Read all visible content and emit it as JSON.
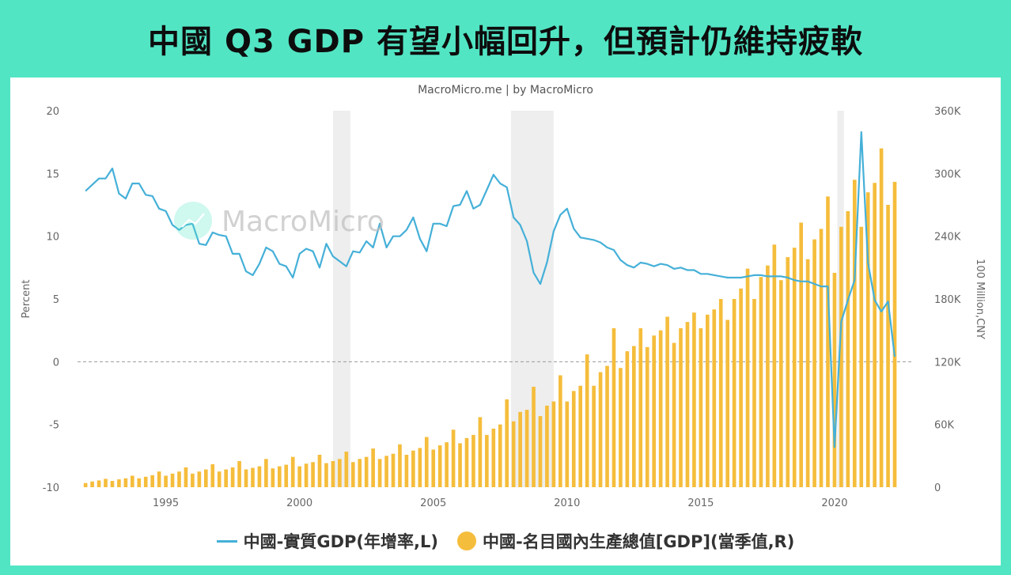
{
  "headline": "中國 Q3 GDP 有望小幅回升，但預計仍維持疲軟",
  "source": "MacroMicro.me | by MacroMicro",
  "watermark": "MacroMicro",
  "colors": {
    "line": "#45b0d8",
    "bar": "#f5bd3c",
    "recession": "#eeeeee",
    "background": "#52e5c4"
  },
  "chart_data": {
    "type": "bar+line",
    "left_axis": {
      "title": "Percent",
      "range": [
        -10,
        20
      ],
      "ticks": [
        "20",
        "15",
        "10",
        "5",
        "0",
        "-5",
        "-10"
      ]
    },
    "right_axis": {
      "title": "100 Million,CNY",
      "range": [
        0,
        360000
      ],
      "ticks": [
        "360K",
        "300K",
        "240K",
        "180K",
        "120K",
        "60K",
        "0"
      ]
    },
    "x_axis": {
      "range": [
        1991.7,
        2022.9
      ],
      "ticks": [
        "1995",
        "2000",
        "2005",
        "2010",
        "2015",
        "2020"
      ]
    },
    "shaded_periods": [
      [
        2001.25,
        2001.9
      ],
      [
        2007.9,
        2009.5
      ],
      [
        2020.1,
        2020.35
      ]
    ],
    "legend": [
      "中國-實質GDP(年增率,L)",
      "中國-名目國內生產總值[GDP](當季值,R)"
    ],
    "series": [
      {
        "name": "中國-實質GDP(年增率,L)",
        "axis": "left",
        "type": "line",
        "points": [
          [
            1992.0,
            13.6
          ],
          [
            1992.25,
            14.1
          ],
          [
            1992.5,
            14.6
          ],
          [
            1992.75,
            14.6
          ],
          [
            1993.0,
            15.4
          ],
          [
            1993.25,
            13.4
          ],
          [
            1993.5,
            13.0
          ],
          [
            1993.75,
            14.2
          ],
          [
            1994.0,
            14.2
          ],
          [
            1994.25,
            13.3
          ],
          [
            1994.5,
            13.2
          ],
          [
            1994.75,
            12.2
          ],
          [
            1995.0,
            12.0
          ],
          [
            1995.25,
            10.9
          ],
          [
            1995.5,
            10.5
          ],
          [
            1995.75,
            10.9
          ],
          [
            1996.0,
            11.0
          ],
          [
            1996.25,
            9.4
          ],
          [
            1996.5,
            9.3
          ],
          [
            1996.75,
            10.3
          ],
          [
            1997.0,
            10.1
          ],
          [
            1997.25,
            10.0
          ],
          [
            1997.5,
            8.6
          ],
          [
            1997.75,
            8.6
          ],
          [
            1998.0,
            7.2
          ],
          [
            1998.25,
            6.9
          ],
          [
            1998.5,
            7.8
          ],
          [
            1998.75,
            9.1
          ],
          [
            1999.0,
            8.8
          ],
          [
            1999.25,
            7.8
          ],
          [
            1999.5,
            7.6
          ],
          [
            1999.75,
            6.7
          ],
          [
            2000.0,
            8.6
          ],
          [
            2000.25,
            9.0
          ],
          [
            2000.5,
            8.8
          ],
          [
            2000.75,
            7.5
          ],
          [
            2001.0,
            9.4
          ],
          [
            2001.25,
            8.4
          ],
          [
            2001.5,
            8.0
          ],
          [
            2001.75,
            7.6
          ],
          [
            2002.0,
            8.8
          ],
          [
            2002.25,
            8.7
          ],
          [
            2002.5,
            9.6
          ],
          [
            2002.75,
            9.1
          ],
          [
            2003.0,
            11.0
          ],
          [
            2003.25,
            9.1
          ],
          [
            2003.5,
            10.0
          ],
          [
            2003.75,
            10.0
          ],
          [
            2004.0,
            10.5
          ],
          [
            2004.25,
            11.5
          ],
          [
            2004.5,
            9.8
          ],
          [
            2004.75,
            8.8
          ],
          [
            2005.0,
            11.0
          ],
          [
            2005.25,
            11.0
          ],
          [
            2005.5,
            10.8
          ],
          [
            2005.75,
            12.4
          ],
          [
            2006.0,
            12.5
          ],
          [
            2006.25,
            13.6
          ],
          [
            2006.5,
            12.2
          ],
          [
            2006.75,
            12.5
          ],
          [
            2007.0,
            13.7
          ],
          [
            2007.25,
            14.9
          ],
          [
            2007.5,
            14.2
          ],
          [
            2007.75,
            13.9
          ],
          [
            2008.0,
            11.5
          ],
          [
            2008.25,
            10.9
          ],
          [
            2008.5,
            9.6
          ],
          [
            2008.75,
            7.1
          ],
          [
            2009.0,
            6.2
          ],
          [
            2009.25,
            7.9
          ],
          [
            2009.5,
            10.4
          ],
          [
            2009.75,
            11.7
          ],
          [
            2010.0,
            12.2
          ],
          [
            2010.25,
            10.6
          ],
          [
            2010.5,
            9.9
          ],
          [
            2010.75,
            9.8
          ],
          [
            2011.0,
            9.7
          ],
          [
            2011.25,
            9.5
          ],
          [
            2011.5,
            9.1
          ],
          [
            2011.75,
            8.9
          ],
          [
            2012.0,
            8.1
          ],
          [
            2012.25,
            7.7
          ],
          [
            2012.5,
            7.5
          ],
          [
            2012.75,
            7.9
          ],
          [
            2013.0,
            7.8
          ],
          [
            2013.25,
            7.6
          ],
          [
            2013.5,
            7.8
          ],
          [
            2013.75,
            7.7
          ],
          [
            2014.0,
            7.4
          ],
          [
            2014.25,
            7.5
          ],
          [
            2014.5,
            7.3
          ],
          [
            2014.75,
            7.3
          ],
          [
            2015.0,
            7.0
          ],
          [
            2015.25,
            7.0
          ],
          [
            2015.5,
            6.9
          ],
          [
            2015.75,
            6.8
          ],
          [
            2016.0,
            6.7
          ],
          [
            2016.25,
            6.7
          ],
          [
            2016.5,
            6.7
          ],
          [
            2016.75,
            6.8
          ],
          [
            2017.0,
            6.9
          ],
          [
            2017.25,
            6.9
          ],
          [
            2017.5,
            6.8
          ],
          [
            2017.75,
            6.8
          ],
          [
            2018.0,
            6.8
          ],
          [
            2018.25,
            6.7
          ],
          [
            2018.5,
            6.5
          ],
          [
            2018.75,
            6.4
          ],
          [
            2019.0,
            6.4
          ],
          [
            2019.25,
            6.2
          ],
          [
            2019.5,
            6.0
          ],
          [
            2019.75,
            6.0
          ],
          [
            2020.0,
            -6.8
          ],
          [
            2020.25,
            3.2
          ],
          [
            2020.5,
            4.9
          ],
          [
            2020.75,
            6.5
          ],
          [
            2021.0,
            18.3
          ],
          [
            2021.25,
            7.9
          ],
          [
            2021.5,
            4.9
          ],
          [
            2021.75,
            4.0
          ],
          [
            2022.0,
            4.8
          ],
          [
            2022.25,
            0.4
          ]
        ]
      },
      {
        "name": "中國-名目國內生產總值[GDP](當季值,R)",
        "axis": "right",
        "type": "bar",
        "points": [
          [
            1992.0,
            4000
          ],
          [
            1992.25,
            5500
          ],
          [
            1992.5,
            6500
          ],
          [
            1992.75,
            8000
          ],
          [
            1993.0,
            6000
          ],
          [
            1993.25,
            7500
          ],
          [
            1993.5,
            8500
          ],
          [
            1993.75,
            11000
          ],
          [
            1994.0,
            8500
          ],
          [
            1994.25,
            10000
          ],
          [
            1994.5,
            11500
          ],
          [
            1994.75,
            15000
          ],
          [
            1995.0,
            11000
          ],
          [
            1995.25,
            13000
          ],
          [
            1995.5,
            15000
          ],
          [
            1995.75,
            19000
          ],
          [
            1996.0,
            13000
          ],
          [
            1996.25,
            15000
          ],
          [
            1996.5,
            17000
          ],
          [
            1996.75,
            22000
          ],
          [
            1997.0,
            15000
          ],
          [
            1997.25,
            17000
          ],
          [
            1997.5,
            19000
          ],
          [
            1997.75,
            25000
          ],
          [
            1998.0,
            17000
          ],
          [
            1998.25,
            18500
          ],
          [
            1998.5,
            20000
          ],
          [
            1998.75,
            27000
          ],
          [
            1999.0,
            18000
          ],
          [
            1999.25,
            20000
          ],
          [
            1999.5,
            21500
          ],
          [
            1999.75,
            29000
          ],
          [
            2000.0,
            20000
          ],
          [
            2000.25,
            22500
          ],
          [
            2000.5,
            24000
          ],
          [
            2000.75,
            31000
          ],
          [
            2001.0,
            23000
          ],
          [
            2001.25,
            25000
          ],
          [
            2001.5,
            27000
          ],
          [
            2001.75,
            34000
          ],
          [
            2002.0,
            24000
          ],
          [
            2002.25,
            27000
          ],
          [
            2002.5,
            29000
          ],
          [
            2002.75,
            37000
          ],
          [
            2003.0,
            27000
          ],
          [
            2003.25,
            30000
          ],
          [
            2003.5,
            32000
          ],
          [
            2003.75,
            41000
          ],
          [
            2004.0,
            31000
          ],
          [
            2004.25,
            35000
          ],
          [
            2004.5,
            37500
          ],
          [
            2004.75,
            48000
          ],
          [
            2005.0,
            36000
          ],
          [
            2005.25,
            40000
          ],
          [
            2005.5,
            43000
          ],
          [
            2005.75,
            55000
          ],
          [
            2006.0,
            42000
          ],
          [
            2006.25,
            47000
          ],
          [
            2006.5,
            50000
          ],
          [
            2006.75,
            67000
          ],
          [
            2007.0,
            50000
          ],
          [
            2007.25,
            56000
          ],
          [
            2007.5,
            60000
          ],
          [
            2007.75,
            84000
          ],
          [
            2008.0,
            63000
          ],
          [
            2008.25,
            72000
          ],
          [
            2008.5,
            74000
          ],
          [
            2008.75,
            96000
          ],
          [
            2009.0,
            68000
          ],
          [
            2009.25,
            78000
          ],
          [
            2009.5,
            82000
          ],
          [
            2009.75,
            107000
          ],
          [
            2010.0,
            82000
          ],
          [
            2010.25,
            92000
          ],
          [
            2010.5,
            97000
          ],
          [
            2010.75,
            127000
          ],
          [
            2011.0,
            97000
          ],
          [
            2011.25,
            110000
          ],
          [
            2011.5,
            116000
          ],
          [
            2011.75,
            152000
          ],
          [
            2012.0,
            114000
          ],
          [
            2012.25,
            130000
          ],
          [
            2012.5,
            135000
          ],
          [
            2012.75,
            152000
          ],
          [
            2013.0,
            134000
          ],
          [
            2013.25,
            145000
          ],
          [
            2013.5,
            150000
          ],
          [
            2013.75,
            163000
          ],
          [
            2014.0,
            138000
          ],
          [
            2014.25,
            152000
          ],
          [
            2014.5,
            158000
          ],
          [
            2014.75,
            167000
          ],
          [
            2015.0,
            152000
          ],
          [
            2015.25,
            165000
          ],
          [
            2015.5,
            170000
          ],
          [
            2015.75,
            180000
          ],
          [
            2016.0,
            160000
          ],
          [
            2016.25,
            180000
          ],
          [
            2016.5,
            190000
          ],
          [
            2016.75,
            209000
          ],
          [
            2017.0,
            180000
          ],
          [
            2017.25,
            201000
          ],
          [
            2017.5,
            212000
          ],
          [
            2017.75,
            232000
          ],
          [
            2018.0,
            198000
          ],
          [
            2018.25,
            220000
          ],
          [
            2018.5,
            229000
          ],
          [
            2018.75,
            253000
          ],
          [
            2019.0,
            218000
          ],
          [
            2019.25,
            237000
          ],
          [
            2019.5,
            247000
          ],
          [
            2019.75,
            278000
          ],
          [
            2020.0,
            205000
          ],
          [
            2020.25,
            249000
          ],
          [
            2020.5,
            264000
          ],
          [
            2020.75,
            294000
          ],
          [
            2021.0,
            249000
          ],
          [
            2021.25,
            282000
          ],
          [
            2021.5,
            291000
          ],
          [
            2021.75,
            324000
          ],
          [
            2022.0,
            270000
          ],
          [
            2022.25,
            292000
          ]
        ]
      }
    ]
  }
}
